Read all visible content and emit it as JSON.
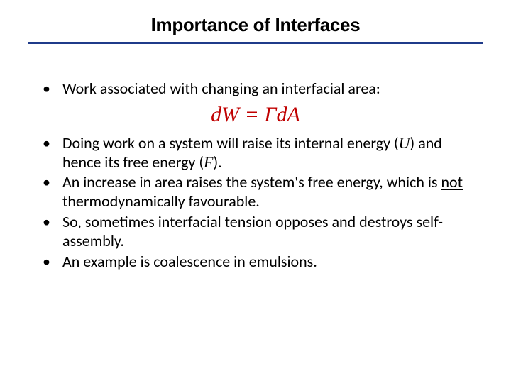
{
  "title": "Importance of Interfaces",
  "title_color": "#000000",
  "title_fontsize": 26,
  "underline_color": "#1f3b8a",
  "underline_height": 3,
  "body_fontsize": 22,
  "body_color": "#000000",
  "equation": {
    "text_html": "d<span class='roman'></span>W = <span class='gamma'>Γ</span>d<span class='roman'></span>A",
    "plain": "dW = Γ dA",
    "color": "#c00000",
    "fontsize": 30,
    "font_family": "Times New Roman",
    "font_style": "italic"
  },
  "bullets": [
    {
      "html": "Work associated with changing an interfacial area:"
    },
    {
      "html": "Doing work on a system will raise its internal energy (<span class='u-var'>U</span>) and hence its free energy (<span class='f-var'>F</span>)."
    },
    {
      "html": "An increase in area raises the system's free energy, which is <span class='underline-word'>not</span> thermodynamically favourable."
    },
    {
      "html": "So, sometimes interfacial tension opposes and destroys self-assembly."
    },
    {
      "html": "An example is coalescence in emulsions."
    }
  ],
  "background_color": "#ffffff"
}
